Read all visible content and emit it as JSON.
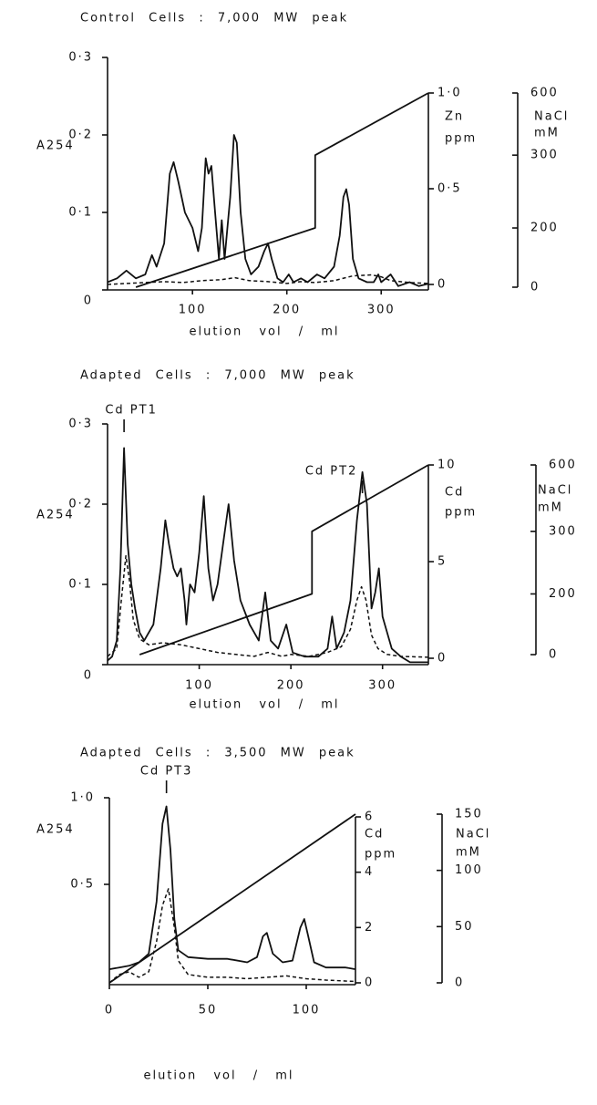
{
  "chart_data": [
    {
      "type": "line",
      "title": "Control Cells : 7,000 MW peak",
      "x_label": "elution vol / ml",
      "y_label": "A254",
      "y2_label": [
        "Zn",
        "ppm"
      ],
      "y3_label": [
        "NaCl",
        "mM"
      ],
      "xlim": [
        10,
        350
      ],
      "xticks": [
        100,
        200,
        300
      ],
      "ylim": [
        0,
        0.3
      ],
      "yticks": [
        0,
        {
          "value": 0.1,
          "label": "0·1"
        },
        {
          "value": 0.2,
          "label": "0·2"
        },
        {
          "value": 0.3,
          "label": "0·3"
        }
      ],
      "y2lim": [
        0,
        1
      ],
      "y2ticks": [
        0,
        {
          "value": 0.5,
          "label": "0·5"
        },
        {
          "value": 1,
          "label": "1·0"
        }
      ],
      "y3lim": [
        0,
        600
      ],
      "y3ticks": [
        0,
        200,
        300,
        600
      ],
      "series": [
        {
          "color": "#111111",
          "style": "solid",
          "axis": "y",
          "x": [
            10,
            20,
            30,
            40,
            50,
            57,
            62,
            70,
            76,
            80,
            85,
            92,
            100,
            106,
            110,
            114,
            117,
            120,
            124,
            128,
            131,
            134,
            140,
            144,
            147,
            151,
            156,
            162,
            170,
            176,
            180,
            184,
            190,
            196,
            202,
            207,
            215,
            222,
            232,
            240,
            250,
            256,
            260,
            263,
            266,
            270,
            276,
            285,
            292,
            297,
            300,
            305,
            310,
            318,
            330,
            340,
            350
          ],
          "values": [
            0.01,
            0.015,
            0.025,
            0.015,
            0.02,
            0.045,
            0.03,
            0.06,
            0.15,
            0.165,
            0.14,
            0.1,
            0.08,
            0.05,
            0.08,
            0.17,
            0.15,
            0.16,
            0.1,
            0.04,
            0.09,
            0.04,
            0.12,
            0.2,
            0.19,
            0.1,
            0.04,
            0.02,
            0.03,
            0.05,
            0.06,
            0.04,
            0.015,
            0.01,
            0.02,
            0.01,
            0.015,
            0.01,
            0.02,
            0.015,
            0.03,
            0.07,
            0.12,
            0.13,
            0.11,
            0.04,
            0.015,
            0.01,
            0.01,
            0.02,
            0.01,
            0.015,
            0.02,
            0.005,
            0.01,
            0.005,
            0.008
          ]
        },
        {
          "color": "#111111",
          "style": "dashed",
          "axis": "y2",
          "x": [
            10,
            30,
            50,
            70,
            90,
            110,
            130,
            145,
            160,
            180,
            200,
            215,
            230,
            250,
            270,
            290,
            300,
            310,
            330,
            350
          ],
          "values": [
            0,
            0.005,
            0.01,
            0.015,
            0.01,
            0.02,
            0.025,
            0.035,
            0.02,
            0.015,
            0.005,
            0.015,
            0.01,
            0.02,
            0.045,
            0.05,
            0.04,
            0.02,
            0.01,
            0.005
          ]
        },
        {
          "color": "#111111",
          "style": "solid",
          "axis": "y3",
          "x": [
            40,
            230,
            230,
            350
          ],
          "values": [
            0,
            200,
            300,
            600
          ]
        }
      ],
      "annotations": []
    },
    {
      "type": "line",
      "title": "Adapted Cells : 7,000 MW peak",
      "x_label": "elution vol / ml",
      "y_label": "A254",
      "y2_label": [
        "Cd",
        "ppm"
      ],
      "y3_label": [
        "NaCl",
        "mM"
      ],
      "xlim": [
        0,
        350
      ],
      "xticks": [
        100,
        200,
        300
      ],
      "ylim": [
        0,
        0.3
      ],
      "yticks": [
        0,
        {
          "value": 0.1,
          "label": "0·1"
        },
        {
          "value": 0.2,
          "label": "0·2"
        },
        {
          "value": 0.3,
          "label": "0·3"
        }
      ],
      "y2lim": [
        0,
        10
      ],
      "y2ticks": [
        0,
        5,
        10
      ],
      "y3lim": [
        0,
        600
      ],
      "y3ticks": [
        0,
        200,
        300,
        600
      ],
      "series": [
        {
          "color": "#111111",
          "style": "solid",
          "axis": "y",
          "x": [
            0,
            5,
            10,
            14,
            18,
            22,
            26,
            30,
            35,
            40,
            50,
            58,
            63,
            67,
            72,
            76,
            80,
            84,
            86,
            90,
            95,
            100,
            105,
            110,
            115,
            120,
            126,
            132,
            138,
            145,
            155,
            165,
            172,
            178,
            186,
            195,
            202,
            215,
            230,
            240,
            245,
            250,
            258,
            265,
            272,
            278,
            283,
            288,
            292,
            296,
            300,
            310,
            320,
            330,
            350
          ],
          "values": [
            0.005,
            0.01,
            0.03,
            0.12,
            0.27,
            0.15,
            0.1,
            0.07,
            0.04,
            0.03,
            0.05,
            0.12,
            0.18,
            0.15,
            0.12,
            0.11,
            0.12,
            0.08,
            0.05,
            0.1,
            0.09,
            0.14,
            0.21,
            0.12,
            0.08,
            0.1,
            0.15,
            0.2,
            0.13,
            0.08,
            0.05,
            0.03,
            0.09,
            0.03,
            0.02,
            0.05,
            0.015,
            0.01,
            0.01,
            0.02,
            0.06,
            0.02,
            0.04,
            0.08,
            0.18,
            0.24,
            0.2,
            0.07,
            0.09,
            0.12,
            0.06,
            0.02,
            0.01,
            0.003,
            0.003
          ]
        },
        {
          "color": "#111111",
          "style": "dashed",
          "axis": "y2",
          "x": [
            0,
            10,
            15,
            20,
            24,
            28,
            35,
            45,
            60,
            80,
            100,
            120,
            140,
            160,
            175,
            190,
            200,
            220,
            240,
            255,
            265,
            272,
            277,
            282,
            288,
            295,
            305,
            320,
            350
          ],
          "values": [
            0.1,
            0.5,
            3,
            5.3,
            4,
            2,
            1,
            0.7,
            0.8,
            0.7,
            0.5,
            0.3,
            0.2,
            0.1,
            0.3,
            0.1,
            0.2,
            0.1,
            0.3,
            0.6,
            1.5,
            3,
            3.7,
            3,
            1.2,
            0.5,
            0.2,
            0.1,
            0.05
          ]
        },
        {
          "color": "#111111",
          "style": "solid",
          "axis": "y3",
          "x": [
            35,
            223,
            223,
            350
          ],
          "values": [
            0,
            200,
            300,
            600
          ]
        }
      ],
      "annotations": [
        {
          "text": "Cd PT1",
          "x": 18
        },
        {
          "text": "Cd PT2",
          "x": 278
        }
      ]
    },
    {
      "type": "line",
      "title": "Adapted Cells : 3,500 MW peak",
      "x_label": "elution vol / ml",
      "y_label": "A254",
      "y2_label": [
        "Cd",
        "ppm"
      ],
      "y3_label": [
        "NaCl",
        "mM"
      ],
      "xlim": [
        0,
        125
      ],
      "xticks": [
        0,
        50,
        100
      ],
      "ylim": [
        0,
        1
      ],
      "yticks": [
        {
          "value": 0.5,
          "label": "0·5"
        },
        {
          "value": 1,
          "label": "1·0"
        }
      ],
      "y2lim": [
        0,
        6
      ],
      "y2ticks": [
        0,
        2,
        4,
        6
      ],
      "y3lim": [
        0,
        150
      ],
      "y3ticks": [
        0,
        50,
        100,
        150
      ],
      "series": [
        {
          "color": "#111111",
          "style": "solid",
          "axis": "y",
          "x": [
            0,
            5,
            10,
            15,
            20,
            24,
            27,
            29,
            31,
            33,
            35,
            40,
            50,
            60,
            70,
            75,
            78,
            80,
            83,
            88,
            93,
            97,
            99,
            101,
            104,
            110,
            120,
            125
          ],
          "values": [
            0.01,
            0.02,
            0.03,
            0.05,
            0.1,
            0.4,
            0.85,
            0.95,
            0.7,
            0.3,
            0.12,
            0.08,
            0.07,
            0.07,
            0.05,
            0.08,
            0.2,
            0.22,
            0.1,
            0.05,
            0.06,
            0.25,
            0.3,
            0.2,
            0.05,
            0.02,
            0.02,
            0.01
          ]
        },
        {
          "color": "#111111",
          "style": "dashed",
          "axis": "y2",
          "x": [
            0,
            5,
            10,
            15,
            20,
            24,
            27,
            30,
            33,
            35,
            40,
            50,
            60,
            70,
            80,
            90,
            100,
            110,
            125
          ],
          "values": [
            0,
            0.3,
            0.4,
            0.2,
            0.4,
            1.5,
            2.8,
            3.4,
            2,
            0.8,
            0.3,
            0.2,
            0.2,
            0.15,
            0.2,
            0.25,
            0.15,
            0.1,
            0.05
          ]
        },
        {
          "color": "#111111",
          "style": "solid",
          "axis": "y3",
          "x": [
            0,
            125
          ],
          "values": [
            0,
            150
          ]
        }
      ],
      "annotations": [
        {
          "text": "Cd PT3",
          "x": 29
        }
      ]
    }
  ]
}
